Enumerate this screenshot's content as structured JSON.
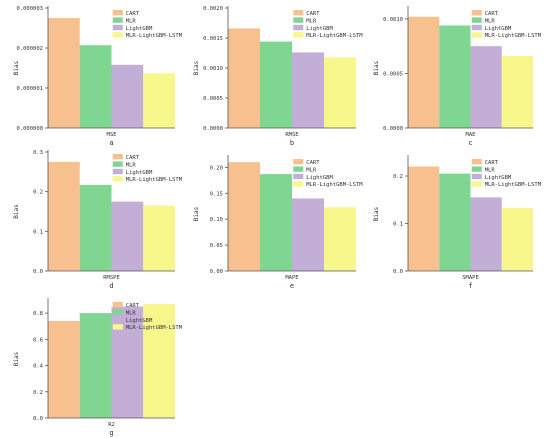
{
  "chart_data": [
    {
      "type": "bar",
      "panel": "a",
      "xlabel": "MSE",
      "ylabel": "Bias",
      "ylim": [
        0,
        3e-06
      ],
      "ticks": [
        0,
        1e-06,
        2e-06,
        3e-06
      ],
      "tick_labels": [
        "0.000000",
        "0.000001",
        "0.000002",
        "0.000003"
      ],
      "categories": [
        "CART",
        "MLR",
        "LightGBM",
        "MLR-LightGBM-LSTM"
      ],
      "values": [
        2.75e-06,
        2.07e-06,
        1.58e-06,
        1.37e-06
      ]
    },
    {
      "type": "bar",
      "panel": "b",
      "xlabel": "RMSE",
      "ylabel": "Bias",
      "ylim": [
        0,
        0.002
      ],
      "ticks": [
        0,
        0.0005,
        0.001,
        0.0015,
        0.002
      ],
      "tick_labels": [
        "0.0000",
        "0.0005",
        "0.0010",
        "0.0015",
        "0.0020"
      ],
      "categories": [
        "CART",
        "MLR",
        "LightGBM",
        "MLR-LightGBM-LSTM"
      ],
      "values": [
        0.00166,
        0.00144,
        0.00126,
        0.00118
      ]
    },
    {
      "type": "bar",
      "panel": "c",
      "xlabel": "MAE",
      "ylabel": "Bias",
      "ylim": [
        0,
        0.0011
      ],
      "ticks": [
        0,
        0.0005,
        0.001
      ],
      "tick_labels": [
        "0.0000",
        "0.0005",
        "0.0010"
      ],
      "categories": [
        "CART",
        "MLR",
        "LightGBM",
        "MLR-LightGBM-LSTM"
      ],
      "values": [
        0.00102,
        0.00094,
        0.00075,
        0.00066
      ]
    },
    {
      "type": "bar",
      "panel": "d",
      "xlabel": "RMSPE",
      "ylabel": "Bias",
      "ylim": [
        0,
        0.3
      ],
      "ticks": [
        0,
        0.1,
        0.2,
        0.3
      ],
      "tick_labels": [
        "0.0",
        "0.1",
        "0.2",
        "0.3"
      ],
      "categories": [
        "CART",
        "MLR",
        "LightGBM",
        "MLR-LightGBM-LSTM"
      ],
      "values": [
        0.275,
        0.217,
        0.175,
        0.165
      ]
    },
    {
      "type": "bar",
      "panel": "e",
      "xlabel": "MAPE",
      "ylabel": "Bias",
      "ylim": [
        0,
        0.22
      ],
      "ticks": [
        0,
        0.05,
        0.1,
        0.15,
        0.2
      ],
      "tick_labels": [
        "0.00",
        "0.05",
        "0.10",
        "0.15",
        "0.20"
      ],
      "categories": [
        "CART",
        "MLR",
        "LightGBM",
        "MLR-LightGBM-LSTM"
      ],
      "values": [
        0.21,
        0.187,
        0.14,
        0.123
      ]
    },
    {
      "type": "bar",
      "panel": "f",
      "xlabel": "SMAPE",
      "ylabel": "Bias",
      "ylim": [
        0,
        0.24
      ],
      "ticks": [
        0,
        0.1,
        0.2
      ],
      "tick_labels": [
        "0.0",
        "0.1",
        "0.2"
      ],
      "categories": [
        "CART",
        "MLR",
        "LightGBM",
        "MLR-LightGBM-LSTM"
      ],
      "values": [
        0.22,
        0.205,
        0.155,
        0.133
      ]
    },
    {
      "type": "bar",
      "panel": "g",
      "xlabel": "R2",
      "ylabel": "Bias",
      "ylim": [
        0,
        0.9
      ],
      "ticks": [
        0,
        0.2,
        0.4,
        0.6,
        0.8
      ],
      "tick_labels": [
        "0.0",
        "0.2",
        "0.4",
        "0.6",
        "0.8"
      ],
      "categories": [
        "CART",
        "MLR",
        "LightGBM",
        "MLR-LightGBM-LSTM"
      ],
      "values": [
        0.74,
        0.8,
        0.85,
        0.87
      ]
    }
  ],
  "legend": {
    "placement": "top-right",
    "entries": [
      "CART",
      "MLR",
      "LightGBM",
      "MLR-LightGBM-LSTM"
    ]
  },
  "colors": {
    "CART": "#f9c08f",
    "MLR": "#7ed690",
    "LightGBM": "#c3aed8",
    "MLR-LightGBM-LSTM": "#f8f78c",
    "axis": "#555555"
  }
}
